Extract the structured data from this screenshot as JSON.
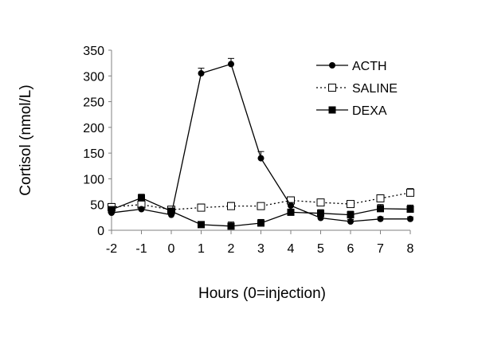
{
  "chart_data": {
    "type": "line",
    "title": "",
    "xlabel": "Hours (0=injection)",
    "ylabel": "Cortisol (nmol/L)",
    "x": [
      -2,
      -1,
      0,
      1,
      2,
      3,
      4,
      5,
      6,
      7,
      8
    ],
    "x_tick_labels": [
      "-2",
      "-1",
      "0",
      "1",
      "2",
      "3",
      "4",
      "5",
      "6",
      "7",
      "8"
    ],
    "y_ticks": [
      0,
      50,
      100,
      150,
      200,
      250,
      300,
      350
    ],
    "ylim": [
      0,
      350
    ],
    "xlim": [
      -2,
      8
    ],
    "grid": false,
    "legend_position": "top-right",
    "series": [
      {
        "name": "ACTH",
        "marker": "filled-circle",
        "line": "solid",
        "values": [
          34,
          41,
          30,
          305,
          323,
          140,
          48,
          24,
          17,
          22,
          22
        ],
        "errors": [
          4,
          4,
          4,
          10,
          11,
          13,
          6,
          4,
          4,
          4,
          4
        ]
      },
      {
        "name": "SALINE",
        "marker": "open-square",
        "line": "dotted",
        "values": [
          45,
          50,
          40,
          44,
          47,
          47,
          58,
          54,
          51,
          62,
          73
        ],
        "errors": [
          7,
          7,
          5,
          7,
          7,
          6,
          7,
          6,
          6,
          7,
          8
        ]
      },
      {
        "name": "DEXA",
        "marker": "filled-square",
        "line": "solid",
        "values": [
          40,
          63,
          37,
          11,
          8,
          14,
          35,
          33,
          30,
          42,
          41
        ],
        "errors": [
          5,
          7,
          5,
          6,
          8,
          7,
          6,
          7,
          7,
          8,
          8
        ]
      }
    ],
    "colors": {
      "line": "#000000",
      "axis": "#808080"
    }
  }
}
